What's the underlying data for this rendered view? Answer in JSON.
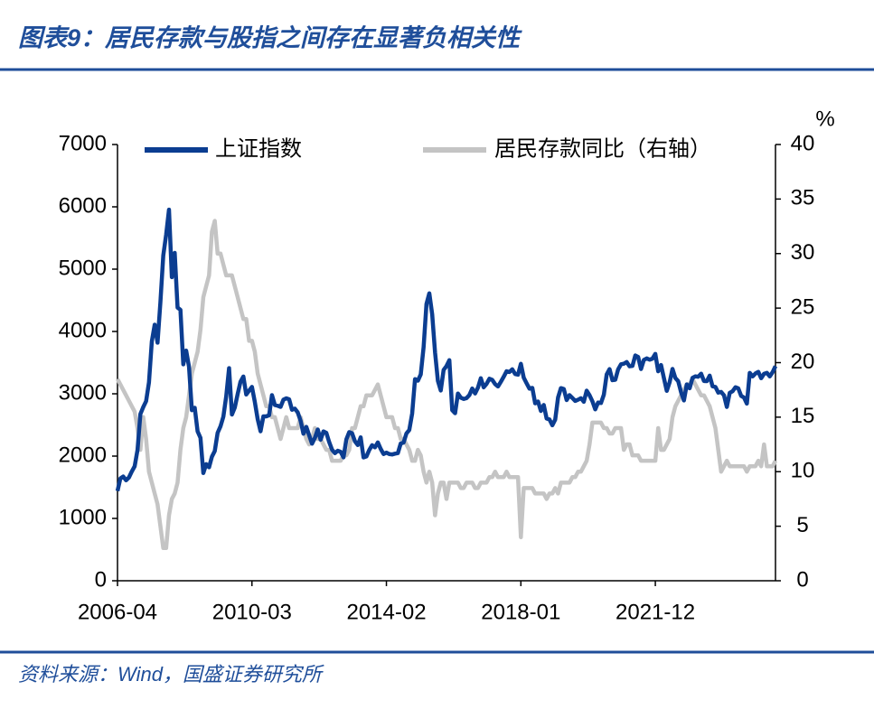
{
  "chart_data": {
    "type": "line",
    "title": "图表9：居民存款与股指之间存在显著负相关性",
    "source": "资料来源：Wind，国盛证券研究所",
    "y2label": "%",
    "categories": [
      "2006-04",
      null,
      null,
      null,
      null,
      null,
      null,
      null,
      null,
      null,
      null,
      null,
      null,
      null,
      null,
      null,
      null,
      null,
      null,
      null,
      null,
      null,
      null,
      null,
      null,
      null,
      null,
      null,
      null,
      null,
      null,
      null,
      null,
      null,
      null,
      null,
      null,
      null,
      null,
      null,
      null,
      null,
      null,
      null,
      null,
      null,
      null,
      "2010-03",
      null,
      null,
      null,
      null,
      null,
      null,
      null,
      null,
      null,
      null,
      null,
      null,
      null,
      null,
      null,
      null,
      null,
      null,
      null,
      null,
      null,
      null,
      null,
      null,
      null,
      null,
      null,
      null,
      null,
      null,
      null,
      null,
      null,
      null,
      null,
      null,
      null,
      null,
      null,
      null,
      null,
      null,
      null,
      null,
      null,
      null,
      "2014-02",
      null,
      null,
      null,
      null,
      null,
      null,
      null,
      null,
      null,
      null,
      null,
      null,
      null,
      null,
      null,
      null,
      null,
      null,
      null,
      null,
      null,
      null,
      null,
      null,
      null,
      null,
      null,
      null,
      null,
      null,
      null,
      null,
      null,
      null,
      null,
      null,
      null,
      null,
      null,
      null,
      null,
      null,
      null,
      null,
      null,
      null,
      "2018-01",
      null,
      null,
      null,
      null,
      null,
      null,
      null,
      null,
      null,
      null,
      null,
      null,
      null,
      null,
      null,
      null,
      null,
      null,
      null,
      null,
      null,
      null,
      null,
      null,
      null,
      null,
      null,
      null,
      null,
      null,
      null,
      null,
      null,
      null,
      null,
      null,
      null,
      null,
      null,
      null,
      null,
      null,
      null,
      null,
      null,
      null,
      "2021-12",
      null,
      null,
      null,
      null,
      null,
      null,
      null,
      null,
      null,
      null,
      null,
      null,
      null,
      null,
      null,
      null,
      null,
      null,
      null,
      null,
      null,
      null,
      null,
      null,
      null,
      null,
      null,
      null,
      null,
      null,
      null,
      null,
      null,
      null,
      null,
      null,
      null,
      null,
      null,
      null,
      null,
      null
    ],
    "series": [
      {
        "name": "上证指数",
        "color": "#0b3d91",
        "values": [
          1440,
          1641,
          1672,
          1612,
          1658,
          1753,
          1837,
          2099,
          2675,
          2786,
          2881,
          3183,
          3841,
          4109,
          3820,
          4471,
          5218,
          5552,
          5954,
          4871,
          5261,
          4383,
          4348,
          3472,
          3693,
          3433,
          2736,
          2775,
          2397,
          2293,
          1728,
          1871,
          1821,
          1990,
          2082,
          2373,
          2477,
          2632,
          2959,
          3412,
          2667,
          2779,
          2996,
          3195,
          3277,
          2989,
          3051,
          3110,
          2870,
          2592,
          2398,
          2638,
          2638,
          2656,
          2979,
          2820,
          2808,
          2790,
          2905,
          2928,
          2911,
          2743,
          2762,
          2701,
          2568,
          2359,
          2469,
          2333,
          2199,
          2292,
          2428,
          2263,
          2397,
          2373,
          2225,
          2103,
          2047,
          2086,
          2069,
          1980,
          2269,
          2385,
          2366,
          2237,
          2178,
          2301,
          1979,
          1994,
          2098,
          2175,
          2141,
          2220,
          2116,
          2033,
          2056,
          2033,
          2026,
          2039,
          2048,
          2202,
          2217,
          2364,
          2420,
          2683,
          3235,
          3210,
          3310,
          3748,
          4441,
          4612,
          4277,
          3664,
          3206,
          3053,
          3383,
          3445,
          3539,
          2738,
          2688,
          3004,
          2938,
          2917,
          2930,
          2979,
          3085,
          3005,
          3100,
          3250,
          3104,
          3159,
          3242,
          3223,
          3155,
          3117,
          3192,
          3273,
          3361,
          3349,
          3393,
          3317,
          3307,
          3481,
          3259,
          3169,
          3082,
          3095,
          2847,
          2876,
          2725,
          2821,
          2603,
          2588,
          2494,
          2585,
          2941,
          3091,
          3078,
          2899,
          2979,
          2933,
          2886,
          2905,
          2929,
          2872,
          3050,
          2977,
          2880,
          2750,
          2860,
          2852,
          2985,
          3310,
          3396,
          3218,
          3225,
          3392,
          3473,
          3483,
          3509,
          3441,
          3447,
          3615,
          3591,
          3397,
          3544,
          3568,
          3547,
          3564,
          3640,
          3361,
          3462,
          3252,
          3047,
          3186,
          3399,
          3253,
          3202,
          3024,
          2893,
          3151,
          3089,
          3255,
          3280,
          3273,
          3323,
          3205,
          3202,
          3291,
          3120,
          3110,
          3019,
          3030,
          2975,
          2789,
          3015,
          3041,
          3105,
          3087,
          2967,
          2939,
          2842,
          3336,
          3279,
          3326,
          3352,
          3250,
          3320,
          3336,
          3279,
          3347,
          3444
        ]
      },
      {
        "name": "居民存款同比（右轴）",
        "color": "#c4c4c4",
        "axis": "y2",
        "values": [
          18.5,
          18,
          17.5,
          17,
          16.5,
          16,
          15.5,
          14,
          12,
          15,
          13,
          10,
          9,
          8,
          7,
          5,
          3,
          3,
          6,
          7.5,
          8,
          9,
          12,
          14,
          15,
          17,
          19,
          20,
          21,
          23,
          26,
          27,
          28,
          32,
          33,
          30,
          30,
          29,
          28,
          28,
          28,
          27,
          26,
          25,
          24,
          24,
          22,
          22,
          21,
          19,
          18,
          17,
          16,
          16,
          15,
          15,
          14,
          13,
          14,
          15,
          14,
          14,
          14,
          14,
          15,
          14,
          13,
          12.5,
          13,
          14,
          13,
          13,
          12.5,
          12,
          12,
          11,
          11,
          11,
          11,
          11.5,
          11.5,
          12,
          14,
          14,
          15,
          16,
          16,
          17,
          17,
          17,
          17.5,
          18,
          17,
          16,
          15,
          15,
          15,
          14,
          14,
          13,
          13,
          12.5,
          12,
          11,
          11,
          12,
          11.5,
          10,
          9,
          10,
          9,
          6,
          8,
          9,
          9,
          7.5,
          9,
          9,
          9,
          9,
          8.5,
          8.5,
          9,
          9,
          9,
          8.5,
          8.5,
          9,
          9,
          9,
          9.5,
          9.5,
          10,
          9.5,
          9.5,
          9.5,
          10,
          9.5,
          9.5,
          9.5,
          9.5,
          4,
          8.5,
          8.5,
          8.5,
          8.5,
          8,
          8,
          8,
          8,
          7.5,
          8,
          8,
          8.5,
          8,
          9,
          9,
          9,
          9,
          9.5,
          9.5,
          10,
          10,
          10.5,
          11,
          12.5,
          14.5,
          14.5,
          14.5,
          14.5,
          14,
          14,
          13.5,
          13.5,
          14,
          14,
          14,
          12,
          12.5,
          12.5,
          11.5,
          11.5,
          11.5,
          11,
          11,
          11,
          11,
          11,
          11,
          14,
          12,
          12,
          12.5,
          13,
          15,
          16,
          16.5,
          17,
          17.5,
          18,
          18,
          18.5,
          18,
          17.5,
          17,
          17,
          16.5,
          16,
          15,
          14,
          12,
          10,
          10.5,
          11,
          10.5,
          10.5,
          10.5,
          10.5,
          10.5,
          10.5,
          10,
          10.5,
          10.5,
          10.5,
          11,
          10.5,
          12.5,
          10.5,
          10.5,
          10.5,
          11
        ]
      }
    ],
    "ylim": [
      0,
      7000
    ],
    "yticks": [
      0,
      1000,
      2000,
      3000,
      4000,
      5000,
      6000,
      7000
    ],
    "y2lim": [
      0,
      40
    ],
    "y2ticks": [
      0,
      5,
      10,
      15,
      20,
      25,
      30,
      35,
      40
    ],
    "legend": "top"
  }
}
